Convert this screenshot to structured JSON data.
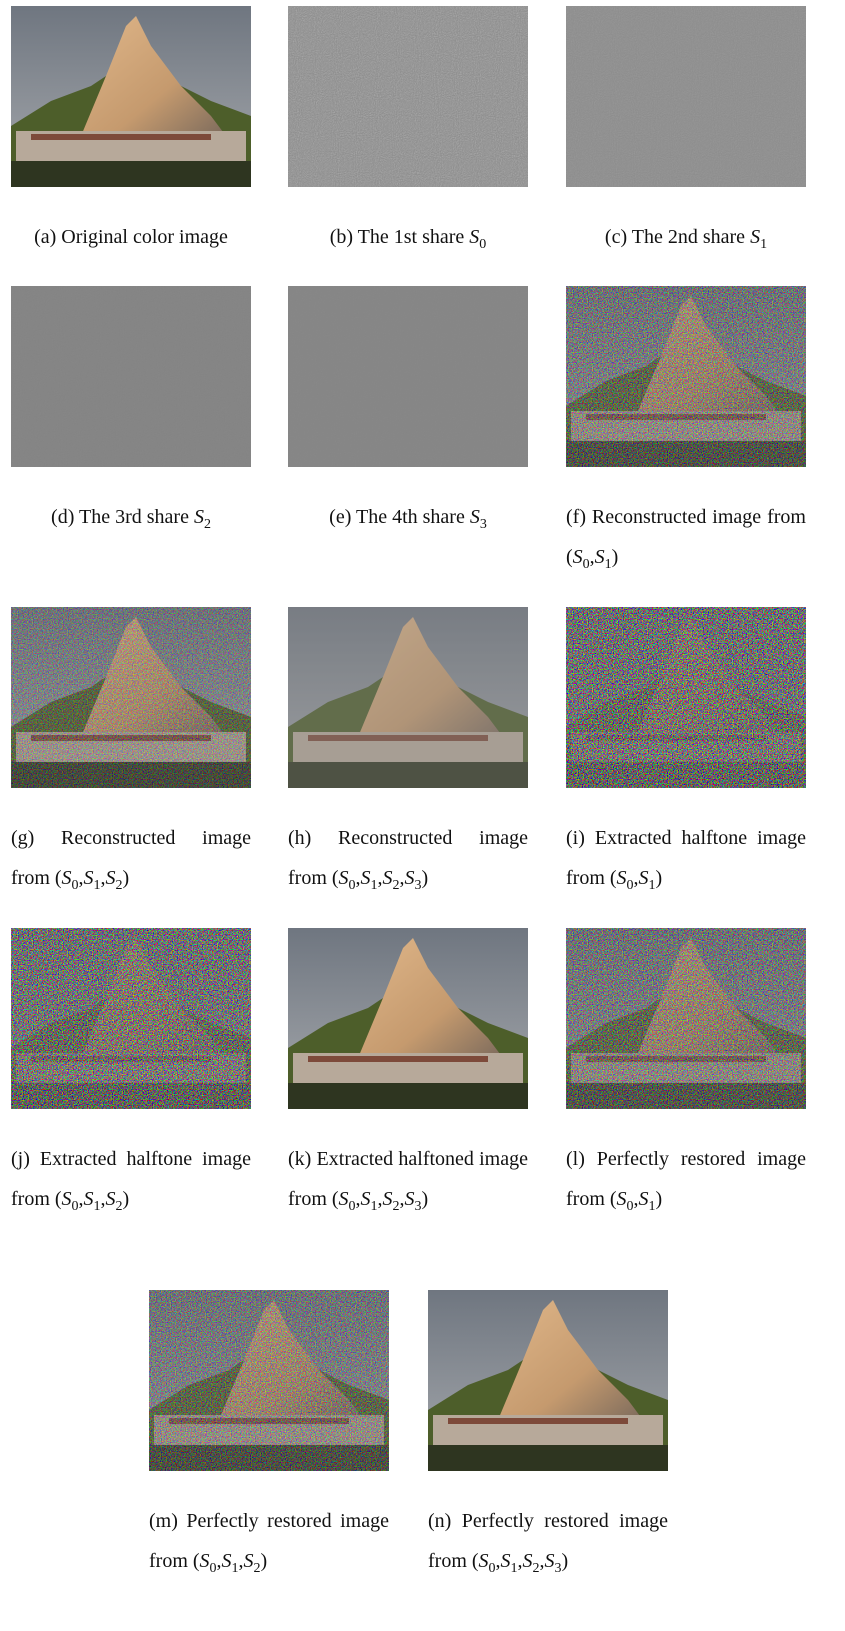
{
  "panels": [
    {
      "caption": [
        {
          "text": "(a) Original color image"
        }
      ]
    },
    {
      "caption": [
        {
          "text": "(b) The 1st share "
        },
        {
          "math": "S",
          "sub": "0"
        }
      ]
    },
    {
      "caption": [
        {
          "text": "(c) The 2nd share "
        },
        {
          "math": "S",
          "sub": "1"
        }
      ]
    },
    {
      "caption": [
        {
          "text": "(d) The 3rd share "
        },
        {
          "math": "S",
          "sub": "2"
        }
      ]
    },
    {
      "caption": [
        {
          "text": "(e) The 4th share "
        },
        {
          "math": "S",
          "sub": "3"
        }
      ]
    },
    {
      "caption": [
        {
          "text": "(f) Reconstructed image from ("
        },
        {
          "math": "S",
          "sub": "0"
        },
        {
          "text": ","
        },
        {
          "math": "S",
          "sub": "1"
        },
        {
          "text": ")"
        }
      ]
    },
    {
      "caption": [
        {
          "text": "(g) Reconstructed image from ("
        },
        {
          "math": "S",
          "sub": "0"
        },
        {
          "text": ","
        },
        {
          "math": "S",
          "sub": "1"
        },
        {
          "text": ","
        },
        {
          "math": "S",
          "sub": "2"
        },
        {
          "text": ")"
        }
      ]
    },
    {
      "caption": [
        {
          "text": "(h) Reconstructed image from ("
        },
        {
          "math": "S",
          "sub": "0"
        },
        {
          "text": ","
        },
        {
          "math": "S",
          "sub": "1"
        },
        {
          "text": ","
        },
        {
          "math": "S",
          "sub": "2"
        },
        {
          "text": ","
        },
        {
          "math": "S",
          "sub": "3"
        },
        {
          "text": ")"
        }
      ]
    },
    {
      "caption": [
        {
          "text": "(i) Extracted halftone image from ("
        },
        {
          "math": "S",
          "sub": "0"
        },
        {
          "text": ","
        },
        {
          "math": "S",
          "sub": "1"
        },
        {
          "text": ")"
        }
      ]
    },
    {
      "caption": [
        {
          "text": "(j) Extracted halftone image from ("
        },
        {
          "math": "S",
          "sub": "0"
        },
        {
          "text": ","
        },
        {
          "math": "S",
          "sub": "1"
        },
        {
          "text": ","
        },
        {
          "math": "S",
          "sub": "2"
        },
        {
          "text": ")"
        }
      ]
    },
    {
      "caption": [
        {
          "text": "(k) Extracted halftoned image from ("
        },
        {
          "math": "S",
          "sub": "0"
        },
        {
          "text": ","
        },
        {
          "math": "S",
          "sub": "1"
        },
        {
          "text": ","
        },
        {
          "math": "S",
          "sub": "2"
        },
        {
          "text": ","
        },
        {
          "math": "S",
          "sub": "3"
        },
        {
          "text": ")"
        }
      ]
    },
    {
      "caption": [
        {
          "text": "(l) Perfectly restored image from ("
        },
        {
          "math": "S",
          "sub": "0"
        },
        {
          "text": ","
        },
        {
          "math": "S",
          "sub": "1"
        },
        {
          "text": ")"
        }
      ]
    },
    {
      "caption": [
        {
          "text": "(m) Perfectly restored image from ("
        },
        {
          "math": "S",
          "sub": "0"
        },
        {
          "text": ","
        },
        {
          "math": "S",
          "sub": "1"
        },
        {
          "text": ","
        },
        {
          "math": "S",
          "sub": "2"
        },
        {
          "text": ")"
        }
      ]
    },
    {
      "caption": [
        {
          "text": "(n) Perfectly restored image from ("
        },
        {
          "math": "S",
          "sub": "0"
        },
        {
          "text": ","
        },
        {
          "math": "S",
          "sub": "1"
        },
        {
          "text": ","
        },
        {
          "math": "S",
          "sub": "2"
        },
        {
          "text": ","
        },
        {
          "math": "S",
          "sub": "3"
        },
        {
          "text": ")"
        }
      ]
    }
  ]
}
